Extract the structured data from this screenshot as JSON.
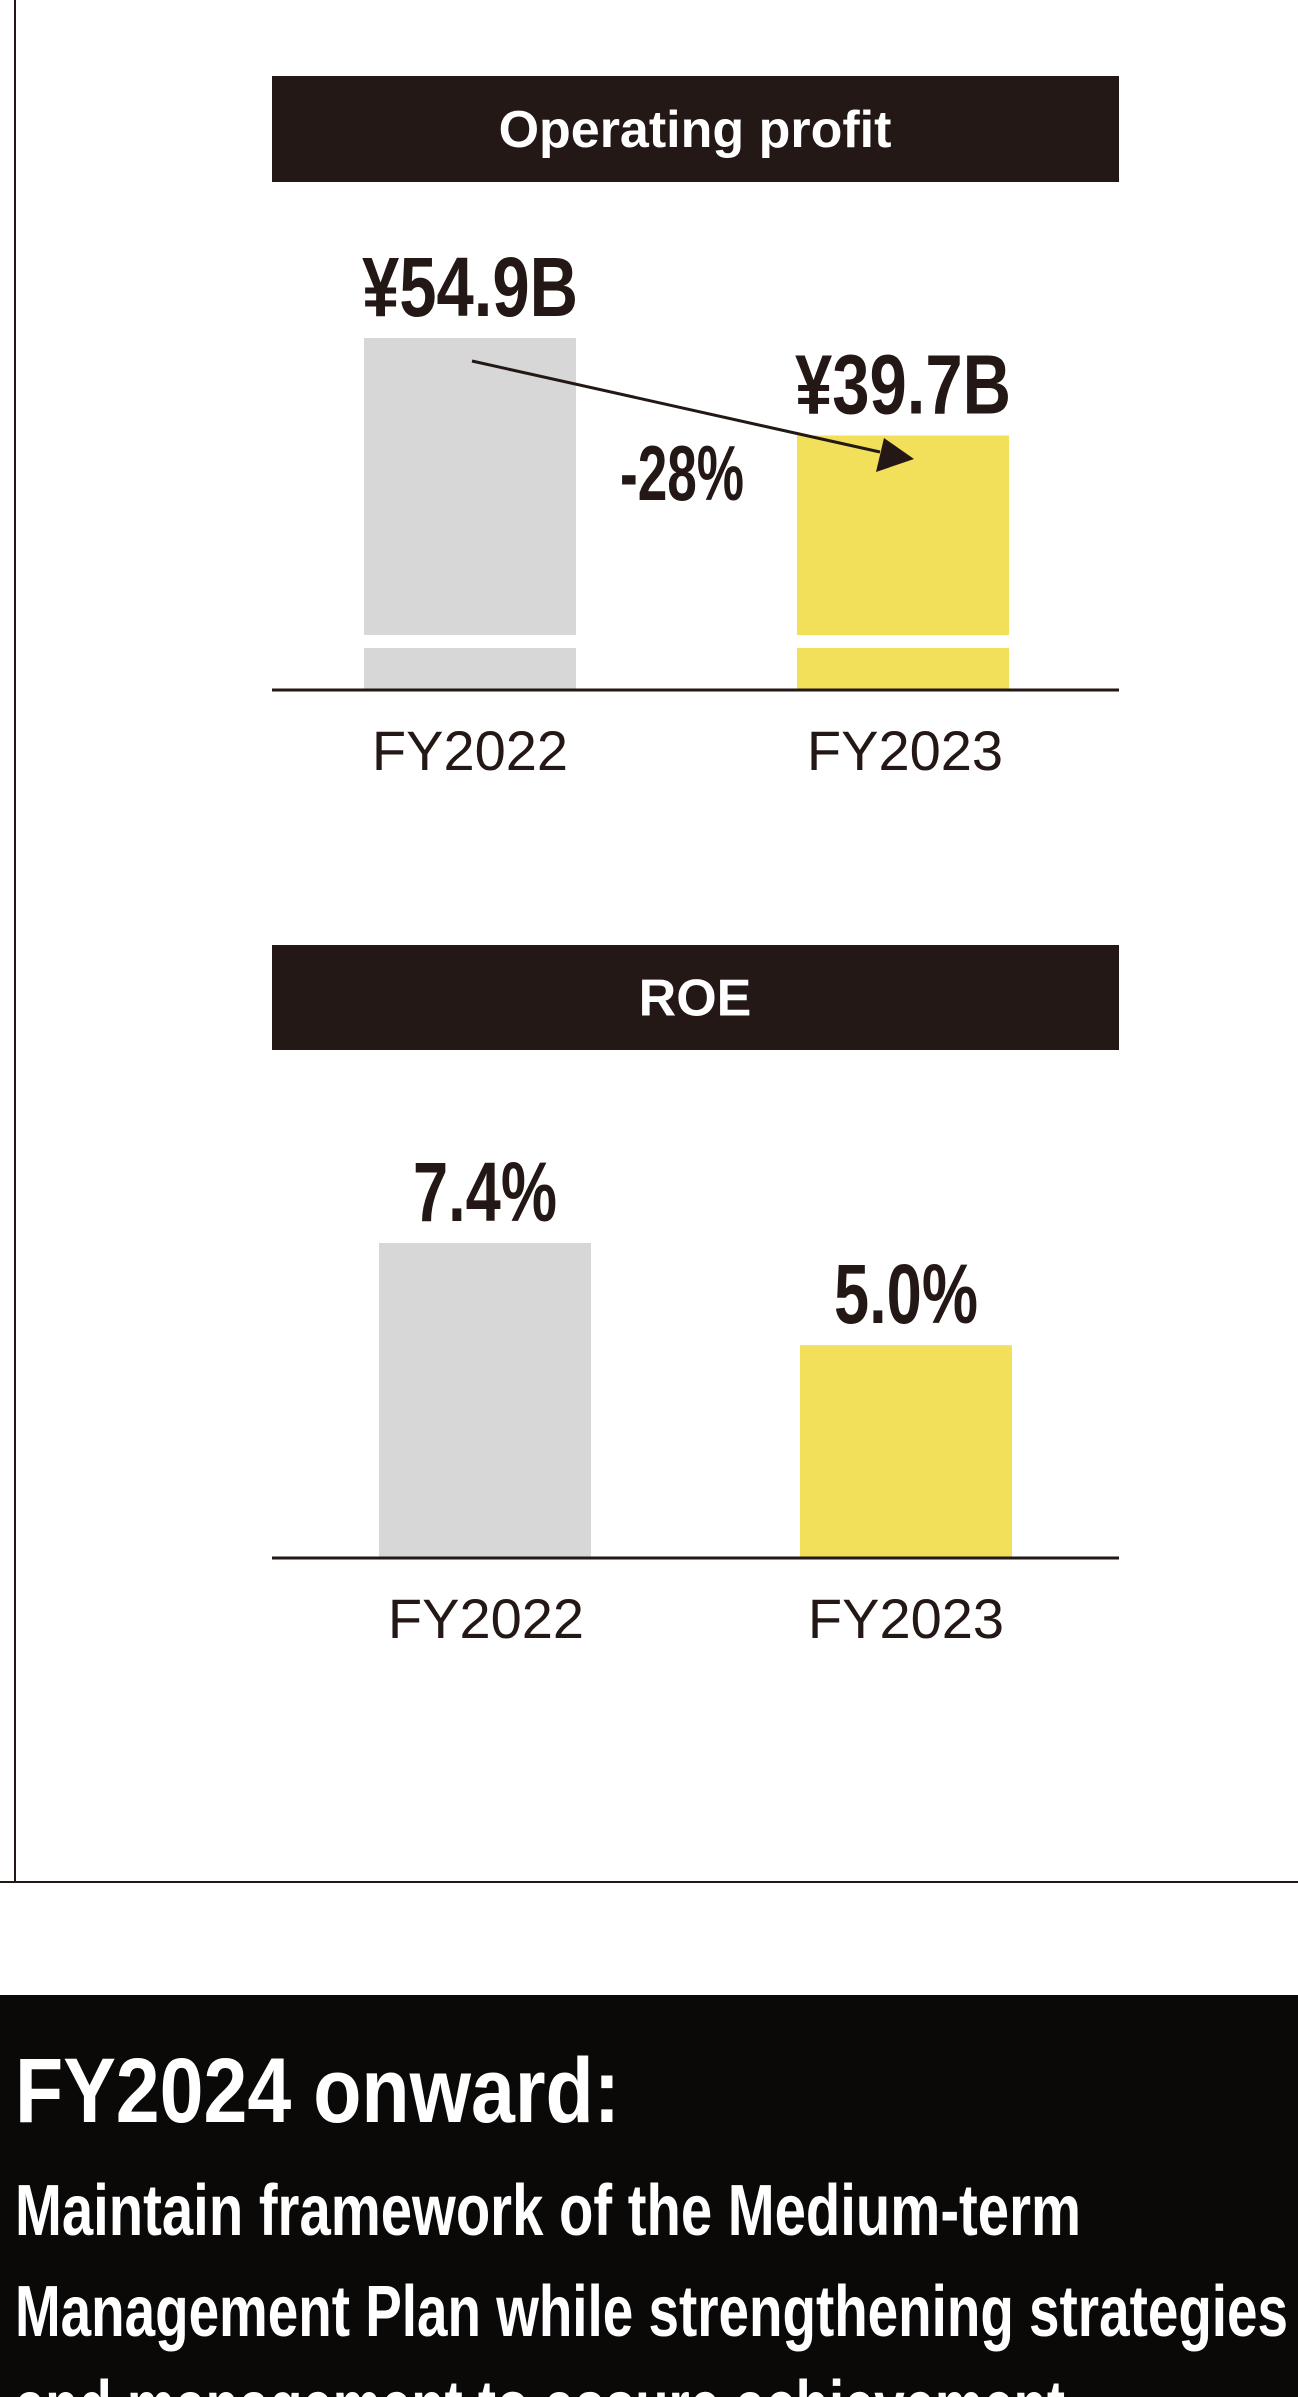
{
  "chart_data": [
    {
      "type": "bar",
      "title": "Operating profit",
      "categories": [
        "FY2022",
        "FY2023"
      ],
      "values": [
        54.9,
        39.7
      ],
      "value_labels": [
        "¥54.9B",
        "¥39.7B"
      ],
      "colors": [
        "#d6d7d6",
        "#f2e05a"
      ],
      "annotation": "-28%"
    },
    {
      "type": "bar",
      "title": "ROE",
      "categories": [
        "FY2022",
        "FY2023"
      ],
      "values": [
        7.4,
        5.0
      ],
      "value_labels": [
        "7.4%",
        "5.0%"
      ],
      "colors": [
        "#d6d7d6",
        "#f2e05a"
      ]
    }
  ],
  "footer": {
    "heading": "FY2024 onward:",
    "lines": [
      "Maintain framework of the Medium-term",
      "Management Plan while strengthening strategies",
      "and management to assure achievement"
    ]
  }
}
